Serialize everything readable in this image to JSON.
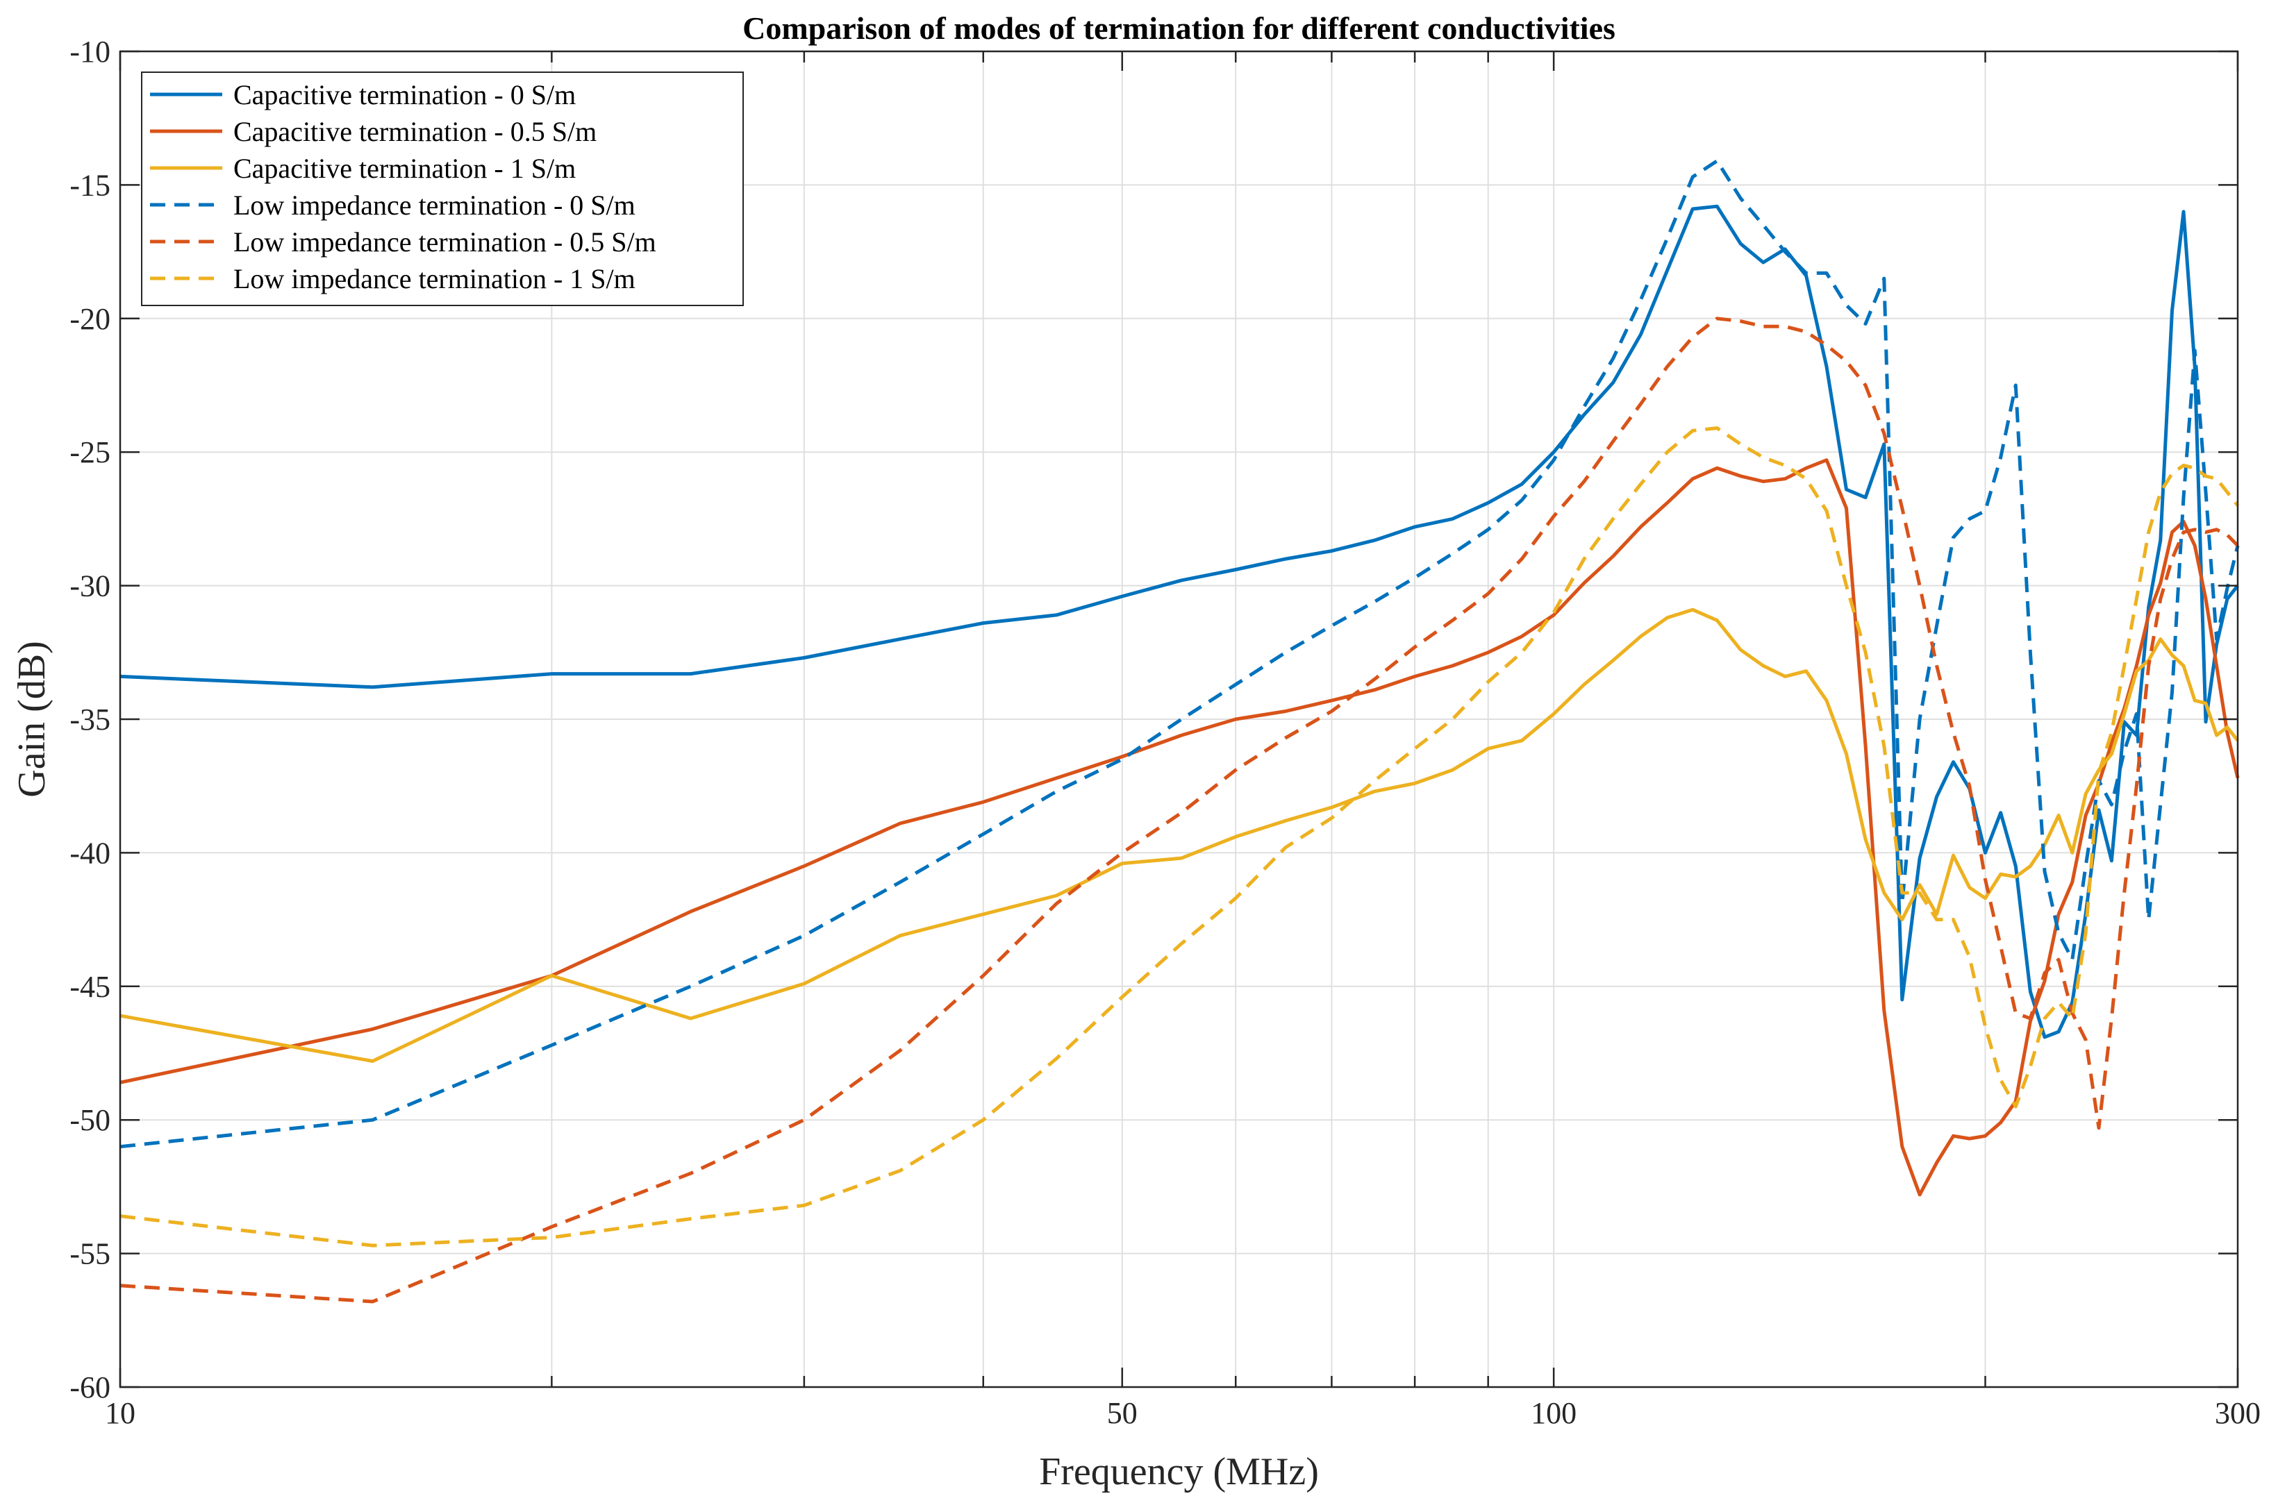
{
  "chart_data": {
    "type": "line",
    "title": "Comparison of modes of termination for different conductivities",
    "xlabel": "Frequency (MHz)",
    "ylabel": "Gain (dB)",
    "xscale": "log",
    "xlim": [
      10,
      300
    ],
    "ylim": [
      -60,
      -10
    ],
    "xticks": [
      10,
      50,
      100,
      300
    ],
    "xtick_labels": [
      "10",
      "50",
      "100",
      "300"
    ],
    "xminor": [
      20,
      30,
      40,
      60,
      70,
      80,
      90,
      200
    ],
    "yticks": [
      -60,
      -55,
      -50,
      -45,
      -40,
      -35,
      -30,
      -25,
      -20,
      -15,
      -10
    ],
    "ytick_labels": [
      "-60",
      "-55",
      "-50",
      "-45",
      "-40",
      "-35",
      "-30",
      "-25",
      "-20",
      "-15",
      "-10"
    ],
    "grid": true,
    "legend_position": "top-left",
    "series": [
      {
        "name": "Capacitive termination - 0 S/m",
        "color": "#0072BD",
        "dash": "solid",
        "x": [
          10,
          15,
          20,
          25,
          30,
          35,
          40,
          45,
          50,
          55,
          60,
          65,
          70,
          75,
          80,
          85,
          90,
          95,
          100,
          105,
          110,
          115,
          120,
          125,
          130,
          135,
          140,
          145,
          150,
          155,
          160,
          165,
          170,
          175,
          180,
          185,
          190,
          195,
          200,
          205,
          210,
          215,
          220,
          225,
          230,
          235,
          240,
          245,
          250,
          255,
          260,
          265,
          270,
          275,
          280,
          285,
          290,
          295,
          300
        ],
        "y": [
          -33.4,
          -33.8,
          -33.3,
          -33.3,
          -32.7,
          -32.0,
          -31.4,
          -31.1,
          -30.4,
          -29.8,
          -29.4,
          -29.0,
          -28.7,
          -28.3,
          -27.8,
          -27.5,
          -26.9,
          -26.2,
          -25.0,
          -23.6,
          -22.4,
          -20.6,
          -18.2,
          -15.9,
          -15.8,
          -17.2,
          -17.9,
          -17.4,
          -18.4,
          -21.8,
          -26.4,
          -26.7,
          -24.7,
          -45.5,
          -40.2,
          -37.9,
          -36.6,
          -37.6,
          -40.0,
          -38.5,
          -40.5,
          -45.2,
          -46.9,
          -46.7,
          -45.6,
          -42.3,
          -38.4,
          -40.3,
          -35.1,
          -35.6,
          -30.8,
          -28.3,
          -19.7,
          -16.0,
          -21.8,
          -35.1,
          -32.2,
          -30.5,
          -30.0
        ]
      },
      {
        "name": "Capacitive termination - 0.5 S/m",
        "color": "#D95319",
        "dash": "solid",
        "x": [
          10,
          15,
          20,
          25,
          30,
          35,
          40,
          45,
          50,
          55,
          60,
          65,
          70,
          75,
          80,
          85,
          90,
          95,
          100,
          105,
          110,
          115,
          120,
          125,
          130,
          135,
          140,
          145,
          150,
          155,
          160,
          165,
          170,
          175,
          180,
          185,
          190,
          195,
          200,
          205,
          210,
          215,
          220,
          225,
          230,
          235,
          240,
          245,
          250,
          255,
          260,
          265,
          270,
          275,
          280,
          285,
          290,
          295,
          300
        ],
        "y": [
          -48.6,
          -46.6,
          -44.6,
          -42.2,
          -40.5,
          -38.9,
          -38.1,
          -37.2,
          -36.4,
          -35.6,
          -35.0,
          -34.7,
          -34.3,
          -33.9,
          -33.4,
          -33.0,
          -32.5,
          -31.9,
          -31.1,
          -29.9,
          -28.9,
          -27.8,
          -26.9,
          -26.0,
          -25.6,
          -25.9,
          -26.1,
          -26.0,
          -25.6,
          -25.3,
          -27.1,
          -36.0,
          -45.9,
          -51.0,
          -52.8,
          -51.6,
          -50.6,
          -50.7,
          -50.6,
          -50.1,
          -49.3,
          -46.3,
          -44.8,
          -42.3,
          -41.1,
          -38.6,
          -37.4,
          -35.9,
          -34.6,
          -33.0,
          -31.1,
          -29.9,
          -28.0,
          -27.6,
          -28.5,
          -30.5,
          -33.0,
          -35.5,
          -37.2
        ]
      },
      {
        "name": "Capacitive termination - 1 S/m",
        "color": "#EDB120",
        "dash": "solid",
        "x": [
          10,
          15,
          20,
          25,
          30,
          35,
          40,
          45,
          50,
          55,
          60,
          65,
          70,
          75,
          80,
          85,
          90,
          95,
          100,
          105,
          110,
          115,
          120,
          125,
          130,
          135,
          140,
          145,
          150,
          155,
          160,
          165,
          170,
          175,
          180,
          185,
          190,
          195,
          200,
          205,
          210,
          215,
          220,
          225,
          230,
          235,
          240,
          245,
          250,
          255,
          260,
          265,
          270,
          275,
          280,
          285,
          290,
          295,
          300
        ],
        "y": [
          -46.1,
          -47.8,
          -44.6,
          -46.2,
          -44.9,
          -43.1,
          -42.3,
          -41.6,
          -40.4,
          -40.2,
          -39.4,
          -38.8,
          -38.3,
          -37.7,
          -37.4,
          -36.9,
          -36.1,
          -35.8,
          -34.8,
          -33.7,
          -32.8,
          -31.9,
          -31.2,
          -30.9,
          -31.3,
          -32.4,
          -33.0,
          -33.4,
          -33.2,
          -34.3,
          -36.3,
          -39.5,
          -41.5,
          -42.5,
          -41.2,
          -42.3,
          -40.1,
          -41.3,
          -41.7,
          -40.8,
          -40.9,
          -40.5,
          -39.7,
          -38.6,
          -40.0,
          -37.8,
          -36.9,
          -36.3,
          -34.8,
          -33.2,
          -32.8,
          -32.0,
          -32.6,
          -33.0,
          -34.3,
          -34.4,
          -35.6,
          -35.3,
          -35.8
        ]
      },
      {
        "name": "Low impedance termination - 0 S/m",
        "color": "#0072BD",
        "dash": "dashed",
        "x": [
          10,
          15,
          20,
          25,
          30,
          35,
          40,
          45,
          50,
          55,
          60,
          65,
          70,
          75,
          80,
          85,
          90,
          95,
          100,
          105,
          110,
          115,
          120,
          125,
          130,
          135,
          140,
          145,
          150,
          155,
          160,
          165,
          170,
          175,
          180,
          185,
          190,
          195,
          200,
          205,
          210,
          215,
          220,
          225,
          230,
          235,
          240,
          245,
          250,
          255,
          260,
          265,
          270,
          275,
          280,
          285,
          290,
          295,
          300
        ],
        "y": [
          -51.0,
          -50.0,
          -47.2,
          -45.0,
          -43.1,
          -41.1,
          -39.3,
          -37.7,
          -36.5,
          -35.0,
          -33.7,
          -32.5,
          -31.5,
          -30.6,
          -29.7,
          -28.8,
          -27.9,
          -26.8,
          -25.3,
          -23.3,
          -21.5,
          -19.3,
          -17.0,
          -14.7,
          -14.1,
          -15.5,
          -16.5,
          -17.5,
          -18.3,
          -18.3,
          -19.5,
          -20.2,
          -18.5,
          -41.9,
          -35.0,
          -31.5,
          -28.2,
          -27.5,
          -27.2,
          -25.2,
          -22.5,
          -32.5,
          -40.7,
          -43.0,
          -44.0,
          -40.5,
          -37.3,
          -38.2,
          -36.2,
          -34.8,
          -42.5,
          -38.2,
          -34.0,
          -26.7,
          -21.2,
          -26.5,
          -32.0,
          -30.1,
          -28.5
        ]
      },
      {
        "name": "Low impedance termination - 0.5 S/m",
        "color": "#D95319",
        "dash": "dashed",
        "x": [
          10,
          15,
          20,
          25,
          30,
          35,
          40,
          45,
          50,
          55,
          60,
          65,
          70,
          75,
          80,
          85,
          90,
          95,
          100,
          105,
          110,
          115,
          120,
          125,
          130,
          135,
          140,
          145,
          150,
          155,
          160,
          165,
          170,
          175,
          180,
          185,
          190,
          195,
          200,
          205,
          210,
          215,
          220,
          225,
          230,
          235,
          240,
          245,
          250,
          255,
          260,
          265,
          270,
          275,
          280,
          285,
          290,
          295,
          300
        ],
        "y": [
          -56.2,
          -56.8,
          -54.0,
          -52.0,
          -50.0,
          -47.4,
          -44.6,
          -41.9,
          -40.0,
          -38.5,
          -36.9,
          -35.7,
          -34.7,
          -33.5,
          -32.3,
          -31.3,
          -30.3,
          -29.0,
          -27.4,
          -26.1,
          -24.6,
          -23.2,
          -21.8,
          -20.7,
          -20.0,
          -20.1,
          -20.3,
          -20.3,
          -20.5,
          -21.0,
          -21.6,
          -22.5,
          -24.3,
          -27.1,
          -30.0,
          -33.0,
          -35.5,
          -37.5,
          -41.0,
          -43.5,
          -46.0,
          -46.2,
          -44.5,
          -44.0,
          -46.0,
          -47.0,
          -50.3,
          -46.2,
          -41.5,
          -37.5,
          -33.0,
          -30.5,
          -29.0,
          -28.0,
          -27.9,
          -28.0,
          -27.9,
          -28.1,
          -28.5
        ]
      },
      {
        "name": "Low impedance termination - 1 S/m",
        "color": "#EDB120",
        "dash": "dashed",
        "x": [
          10,
          15,
          20,
          25,
          30,
          35,
          40,
          45,
          50,
          55,
          60,
          65,
          70,
          75,
          80,
          85,
          90,
          95,
          100,
          105,
          110,
          115,
          120,
          125,
          130,
          135,
          140,
          145,
          150,
          155,
          160,
          165,
          170,
          175,
          180,
          185,
          190,
          195,
          200,
          205,
          210,
          215,
          220,
          225,
          230,
          235,
          240,
          245,
          250,
          255,
          260,
          265,
          270,
          275,
          280,
          285,
          290,
          295,
          300
        ],
        "y": [
          -53.6,
          -54.7,
          -54.4,
          -53.7,
          -53.2,
          -51.9,
          -50.0,
          -47.7,
          -45.4,
          -43.4,
          -41.7,
          -39.8,
          -38.7,
          -37.3,
          -36.1,
          -35.0,
          -33.6,
          -32.5,
          -31.0,
          -29.0,
          -27.5,
          -26.2,
          -25.0,
          -24.2,
          -24.1,
          -24.7,
          -25.2,
          -25.5,
          -26.0,
          -27.2,
          -30.0,
          -32.5,
          -36.0,
          -41.5,
          -41.5,
          -42.5,
          -42.5,
          -43.9,
          -46.5,
          -48.5,
          -49.5,
          -48.0,
          -46.2,
          -45.6,
          -46.2,
          -43.0,
          -37.0,
          -35.5,
          -33.0,
          -30.5,
          -28.0,
          -26.5,
          -25.8,
          -25.5,
          -25.6,
          -25.9,
          -26.0,
          -26.5,
          -27.0
        ]
      }
    ]
  }
}
